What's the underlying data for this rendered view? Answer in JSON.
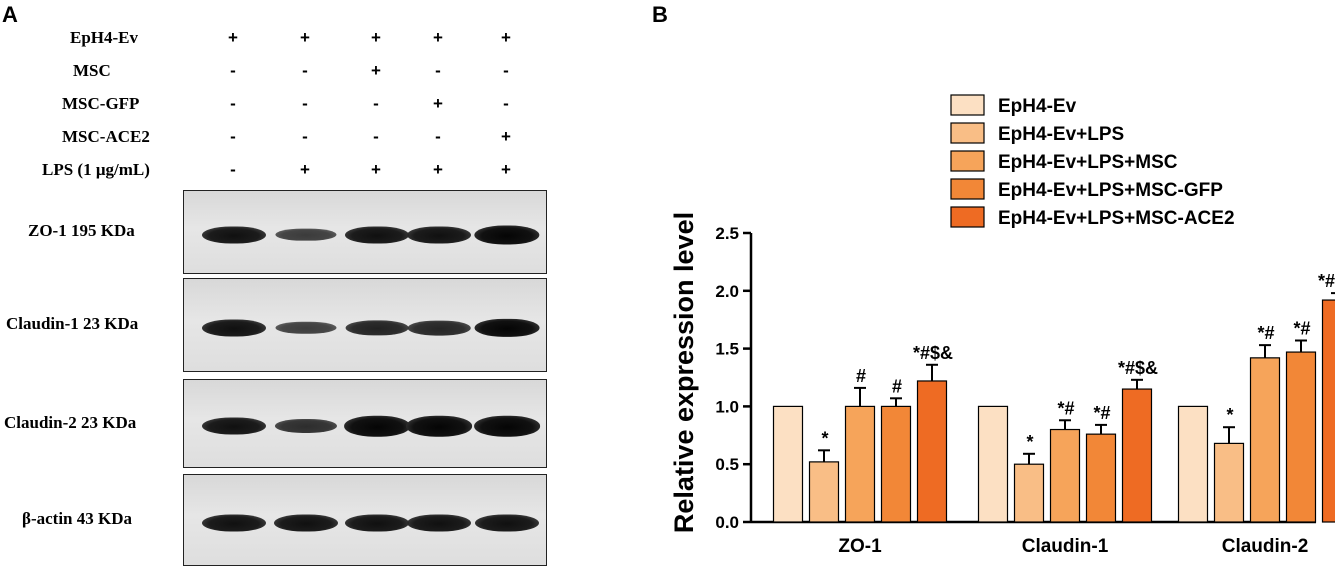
{
  "panels": {
    "a": "A",
    "b": "B"
  },
  "conditions": [
    {
      "label": "EpH4-Ev",
      "signs": [
        "+",
        "+",
        "+",
        "+",
        "+"
      ]
    },
    {
      "label": "MSC",
      "signs": [
        "-",
        "-",
        "+",
        "-",
        "-"
      ]
    },
    {
      "label": "MSC-GFP",
      "signs": [
        "-",
        "-",
        "-",
        "+",
        "-"
      ]
    },
    {
      "label": "MSC-ACE2",
      "signs": [
        "-",
        "-",
        "-",
        "-",
        "+"
      ]
    },
    {
      "label": "LPS (1 μg/mL)",
      "signs": [
        "-",
        "+",
        "+",
        "+",
        "+"
      ]
    }
  ],
  "blots": [
    {
      "label": "ZO-1  195 KDa",
      "intensity": [
        1.0,
        0.52,
        1.0,
        1.0,
        1.22
      ]
    },
    {
      "label": "Claudin-1  23 KDa",
      "intensity": [
        1.0,
        0.5,
        0.8,
        0.76,
        1.15
      ]
    },
    {
      "label": "Claudin-2  23 KDa",
      "intensity": [
        1.0,
        0.68,
        1.42,
        1.47,
        1.92
      ]
    },
    {
      "label": "β-actin   43 KDa",
      "intensity": [
        1.0,
        1.0,
        1.0,
        1.0,
        1.0
      ]
    }
  ],
  "chart_data": {
    "type": "bar",
    "title": "",
    "xlabel": "",
    "ylabel": "Relative expression level",
    "ylim": [
      0,
      2.5
    ],
    "yticks": [
      "0.0",
      "0.5",
      "1.0",
      "1.5",
      "2.0",
      "2.5"
    ],
    "grid": false,
    "legend_position": "top-right",
    "categories": [
      "ZO-1",
      "Claudin-1",
      "Claudin-2"
    ],
    "series": [
      {
        "name": "EpH4-Ev",
        "color": "#FCE0C3",
        "values": [
          1.0,
          1.0,
          1.0
        ],
        "errors": [
          0,
          0,
          0
        ],
        "annotations": [
          "",
          "",
          ""
        ]
      },
      {
        "name": "EpH4-Ev+LPS",
        "color": "#F9BE86",
        "values": [
          0.52,
          0.5,
          0.68
        ],
        "errors": [
          0.1,
          0.09,
          0.14
        ],
        "annotations": [
          "*",
          "*",
          "*"
        ]
      },
      {
        "name": "EpH4-Ev+LPS+MSC",
        "color": "#F6A45A",
        "values": [
          1.0,
          0.8,
          1.42
        ],
        "errors": [
          0.16,
          0.08,
          0.11
        ],
        "annotations": [
          "#",
          "*#",
          "*#"
        ]
      },
      {
        "name": "EpH4-Ev+LPS+MSC-GFP",
        "color": "#F28737",
        "values": [
          1.0,
          0.76,
          1.47
        ],
        "errors": [
          0.07,
          0.08,
          0.1
        ],
        "annotations": [
          "#",
          "*#",
          "*#"
        ]
      },
      {
        "name": "EpH4-Ev+LPS+MSC-ACE2",
        "color": "#EE6B23",
        "values": [
          1.22,
          1.15,
          1.92
        ],
        "errors": [
          0.14,
          0.08,
          0.06
        ],
        "annotations": [
          "*#$&",
          "*#$&",
          "*#$&"
        ]
      }
    ]
  }
}
